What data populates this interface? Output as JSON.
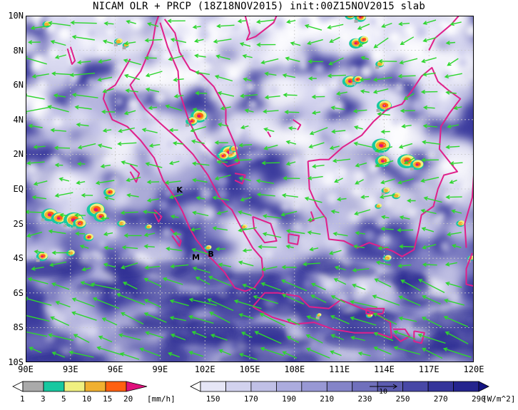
{
  "title": "NICAM OLR + PRCP (18Z18NOV2015) init:00Z15NOV2015 slab",
  "map": {
    "lon_range": [
      90,
      120
    ],
    "lat_range": [
      -10,
      10
    ],
    "lat_labels": [
      {
        "lat": 10,
        "text": "10N"
      },
      {
        "lat": 8,
        "text": "8N"
      },
      {
        "lat": 6,
        "text": "6N"
      },
      {
        "lat": 4,
        "text": "4N"
      },
      {
        "lat": 2,
        "text": "2N"
      },
      {
        "lat": 0,
        "text": "EQ"
      },
      {
        "lat": -2,
        "text": "2S"
      },
      {
        "lat": -4,
        "text": "4S"
      },
      {
        "lat": -6,
        "text": "6S"
      },
      {
        "lat": -8,
        "text": "8S"
      },
      {
        "lat": -10,
        "text": "10S"
      }
    ],
    "lon_labels": [
      {
        "lon": 90,
        "text": "90E"
      },
      {
        "lon": 93,
        "text": "93E"
      },
      {
        "lon": 96,
        "text": "96E"
      },
      {
        "lon": 99,
        "text": "99E"
      },
      {
        "lon": 102,
        "text": "102E"
      },
      {
        "lon": 105,
        "text": "105E"
      },
      {
        "lon": 108,
        "text": "108E"
      },
      {
        "lon": 111,
        "text": "111E"
      },
      {
        "lon": 114,
        "text": "114E"
      },
      {
        "lon": 117,
        "text": "117E"
      },
      {
        "lon": 120,
        "text": "120E"
      }
    ],
    "station_markers": [
      {
        "text": "K",
        "lon": 100.3,
        "lat": -0.2
      },
      {
        "text": "M",
        "lon": 101.4,
        "lat": -4.1
      },
      {
        "text": "B",
        "lon": 102.4,
        "lat": -3.9
      }
    ],
    "colors": {
      "ocean_base": "#3c3c9e",
      "coastline": "#e0208a",
      "wind_vectors": "#2ed62e",
      "grid": "#c8c8c8"
    }
  },
  "precip_colorbar": {
    "colors": [
      "#aaaaaa",
      "#18c8a0",
      "#f0f080",
      "#f0b030",
      "#ff6010",
      "#e0107c"
    ],
    "labels": [
      "1",
      "3",
      "5",
      "10",
      "15",
      "20"
    ],
    "units": "[mm/h]"
  },
  "olr_colorbar": {
    "colors": [
      "#ffffff",
      "#e6e6f6",
      "#d2d2ee",
      "#c0c0e6",
      "#acacde",
      "#9898d4",
      "#8484c8",
      "#7070bc",
      "#5c5cb0",
      "#4848a6",
      "#34349a",
      "#24248e",
      "#141482"
    ],
    "labels": [
      "150",
      "170",
      "190",
      "210",
      "230",
      "250",
      "270",
      "290"
    ],
    "units": "[W/m^2]",
    "reference_vector_label": "10"
  }
}
